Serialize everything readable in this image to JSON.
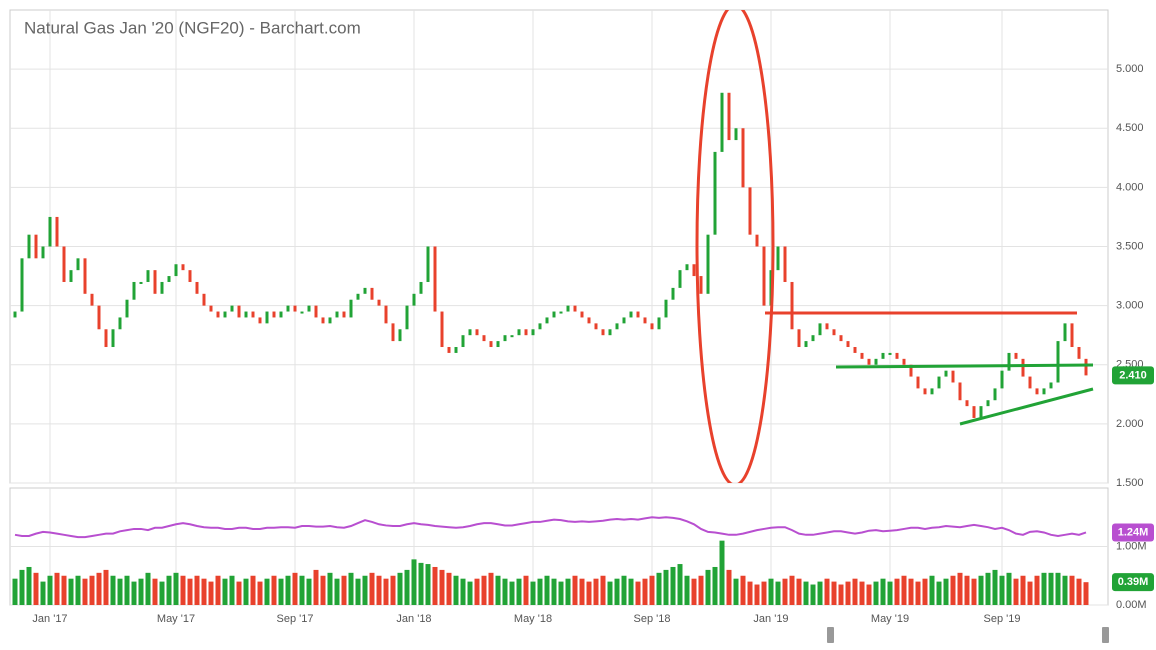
{
  "chart_data": [
    {
      "type": "candlestick",
      "title": "Natural Gas Jan '20 (NGF20) - Barchart.com",
      "up_color": "#21a336",
      "down_color": "#e8412c",
      "open": [
        2.9,
        2.95,
        3.4,
        3.6,
        3.4,
        3.5,
        3.75,
        3.5,
        3.2,
        3.3,
        3.4,
        3.1,
        3.0,
        2.8,
        2.65,
        2.8,
        2.9,
        3.05,
        3.2,
        3.2,
        3.3,
        3.1,
        3.2,
        3.25,
        3.35,
        3.3,
        3.2,
        3.1,
        3.0,
        2.95,
        2.9,
        2.95,
        3.0,
        2.9,
        2.95,
        2.9,
        2.85,
        2.95,
        2.9,
        2.95,
        3.0,
        2.95,
        2.95,
        3.0,
        2.9,
        2.85,
        2.9,
        2.95,
        2.9,
        3.05,
        3.1,
        3.15,
        3.05,
        3.0,
        2.85,
        2.7,
        2.8,
        3.0,
        3.1,
        3.2,
        3.5,
        2.95,
        2.65,
        2.6,
        2.65,
        2.75,
        2.8,
        2.75,
        2.7,
        2.65,
        2.7,
        2.75,
        2.75,
        2.8,
        2.75,
        2.8,
        2.85,
        2.9,
        2.95,
        2.95,
        3.0,
        2.95,
        2.9,
        2.85,
        2.8,
        2.75,
        2.8,
        2.85,
        2.9,
        2.95,
        2.9,
        2.85,
        2.8,
        2.9,
        3.05,
        3.15,
        3.3,
        3.35,
        3.25,
        3.1,
        3.6,
        4.3,
        4.8,
        4.4,
        4.5,
        4.0,
        3.6,
        3.5,
        3.0,
        3.3,
        3.5,
        3.2,
        2.8,
        2.65,
        2.7,
        2.75,
        2.85,
        2.8,
        2.75,
        2.7,
        2.65,
        2.6,
        2.55,
        2.5,
        2.55,
        2.6,
        2.6,
        2.55,
        2.5,
        2.4,
        2.3,
        2.25,
        2.3,
        2.4,
        2.45,
        2.35,
        2.2,
        2.15,
        2.05,
        2.15,
        2.2,
        2.3,
        2.45,
        2.6,
        2.55,
        2.4,
        2.3,
        2.25,
        2.3,
        2.35,
        2.7,
        2.85,
        2.65,
        2.55
      ],
      "close": [
        2.95,
        3.4,
        3.6,
        3.4,
        3.5,
        3.75,
        3.5,
        3.2,
        3.3,
        3.4,
        3.1,
        3.0,
        2.8,
        2.65,
        2.8,
        2.9,
        3.05,
        3.2,
        3.2,
        3.3,
        3.1,
        3.2,
        3.25,
        3.35,
        3.3,
        3.2,
        3.1,
        3.0,
        2.95,
        2.9,
        2.95,
        3.0,
        2.9,
        2.95,
        2.9,
        2.85,
        2.95,
        2.9,
        2.95,
        3.0,
        2.95,
        2.95,
        3.0,
        2.9,
        2.85,
        2.9,
        2.95,
        2.9,
        3.05,
        3.1,
        3.15,
        3.05,
        3.0,
        2.85,
        2.7,
        2.8,
        3.0,
        3.1,
        3.2,
        3.5,
        2.95,
        2.65,
        2.6,
        2.65,
        2.75,
        2.8,
        2.75,
        2.7,
        2.65,
        2.7,
        2.75,
        2.75,
        2.8,
        2.75,
        2.8,
        2.85,
        2.9,
        2.95,
        2.95,
        3.0,
        2.95,
        2.9,
        2.85,
        2.8,
        2.75,
        2.8,
        2.85,
        2.9,
        2.95,
        2.9,
        2.85,
        2.8,
        2.9,
        3.05,
        3.15,
        3.3,
        3.35,
        3.25,
        3.1,
        3.6,
        4.3,
        4.8,
        4.4,
        4.5,
        4.0,
        3.6,
        3.5,
        3.0,
        3.3,
        3.5,
        3.2,
        2.8,
        2.65,
        2.7,
        2.75,
        2.85,
        2.8,
        2.75,
        2.7,
        2.65,
        2.6,
        2.55,
        2.5,
        2.55,
        2.6,
        2.6,
        2.55,
        2.5,
        2.4,
        2.3,
        2.25,
        2.3,
        2.4,
        2.45,
        2.35,
        2.2,
        2.15,
        2.05,
        2.15,
        2.2,
        2.3,
        2.45,
        2.6,
        2.55,
        2.4,
        2.3,
        2.25,
        2.3,
        2.35,
        2.7,
        2.85,
        2.65,
        2.55,
        2.41
      ],
      "ylim": [
        1.5,
        5.5
      ],
      "yticks": [
        {
          "value": 1.5,
          "label": "1.500"
        },
        {
          "value": 2,
          "label": "2.000"
        },
        {
          "value": 2.5,
          "label": "2.500"
        },
        {
          "value": 3,
          "label": "3.000"
        },
        {
          "value": 3.5,
          "label": "3.500"
        },
        {
          "value": 4,
          "label": "4.000"
        },
        {
          "value": 4.5,
          "label": "4.500"
        },
        {
          "value": 5,
          "label": "5.000"
        }
      ],
      "last_price": {
        "value": 2.41,
        "label": "2.410"
      },
      "grid": true
    },
    {
      "type": "bar",
      "categories": [
        null,
        null,
        null,
        null,
        null,
        "Jan '17",
        null,
        null,
        null,
        null,
        null,
        null,
        null,
        null,
        null,
        null,
        null,
        null,
        null,
        null,
        null,
        null,
        null,
        "May '17",
        null,
        null,
        null,
        null,
        null,
        null,
        null,
        null,
        null,
        null,
        null,
        null,
        null,
        null,
        null,
        null,
        "Sep '17",
        null,
        null,
        null,
        null,
        null,
        null,
        null,
        null,
        null,
        null,
        null,
        null,
        null,
        null,
        null,
        null,
        "Jan '18",
        null,
        null,
        null,
        null,
        null,
        null,
        null,
        null,
        null,
        null,
        null,
        null,
        null,
        null,
        null,
        null,
        "May '18",
        null,
        null,
        null,
        null,
        null,
        null,
        null,
        null,
        null,
        null,
        null,
        null,
        null,
        null,
        null,
        null,
        "Sep '18",
        null,
        null,
        null,
        null,
        null,
        null,
        null,
        null,
        null,
        null,
        null,
        null,
        null,
        null,
        null,
        null,
        "Jan '19",
        null,
        null,
        null,
        null,
        null,
        null,
        null,
        null,
        null,
        null,
        null,
        null,
        null,
        null,
        null,
        null,
        "May '19",
        null,
        null,
        null,
        null,
        null,
        null,
        null,
        null,
        null,
        null,
        null,
        null,
        null,
        null,
        null,
        "Sep '19",
        null,
        null,
        null,
        null,
        null,
        null,
        null,
        null,
        null,
        null,
        null,
        null
      ],
      "values": [
        0.45,
        0.6,
        0.65,
        0.55,
        0.4,
        0.5,
        0.55,
        0.5,
        0.45,
        0.5,
        0.45,
        0.5,
        0.55,
        0.6,
        0.5,
        0.45,
        0.5,
        0.4,
        0.45,
        0.55,
        0.45,
        0.4,
        0.5,
        0.55,
        0.5,
        0.45,
        0.5,
        0.45,
        0.4,
        0.5,
        0.45,
        0.5,
        0.4,
        0.45,
        0.5,
        0.4,
        0.45,
        0.5,
        0.45,
        0.5,
        0.55,
        0.5,
        0.45,
        0.6,
        0.5,
        0.55,
        0.45,
        0.5,
        0.55,
        0.45,
        0.5,
        0.55,
        0.5,
        0.45,
        0.5,
        0.55,
        0.6,
        0.78,
        0.72,
        0.7,
        0.65,
        0.6,
        0.55,
        0.5,
        0.45,
        0.4,
        0.45,
        0.5,
        0.55,
        0.5,
        0.45,
        0.4,
        0.45,
        0.5,
        0.4,
        0.45,
        0.5,
        0.45,
        0.4,
        0.45,
        0.5,
        0.45,
        0.4,
        0.45,
        0.5,
        0.4,
        0.45,
        0.5,
        0.45,
        0.4,
        0.45,
        0.5,
        0.55,
        0.6,
        0.65,
        0.7,
        0.5,
        0.45,
        0.5,
        0.6,
        0.65,
        1.1,
        0.6,
        0.45,
        0.5,
        0.4,
        0.35,
        0.4,
        0.45,
        0.4,
        0.45,
        0.5,
        0.45,
        0.4,
        0.35,
        0.4,
        0.45,
        0.4,
        0.35,
        0.4,
        0.45,
        0.4,
        0.35,
        0.4,
        0.45,
        0.4,
        0.45,
        0.5,
        0.45,
        0.4,
        0.45,
        0.5,
        0.4,
        0.45,
        0.5,
        0.55,
        0.5,
        0.45,
        0.5,
        0.55,
        0.6,
        0.5,
        0.55,
        0.45,
        0.5,
        0.4,
        0.5,
        0.55,
        0.55,
        0.55,
        0.5,
        0.5,
        0.45,
        0.39
      ],
      "average": [
        1.2,
        1.18,
        1.18,
        1.22,
        1.25,
        1.24,
        1.22,
        1.2,
        1.18,
        1.16,
        1.16,
        1.18,
        1.2,
        1.22,
        1.22,
        1.26,
        1.28,
        1.3,
        1.3,
        1.28,
        1.32,
        1.32,
        1.35,
        1.38,
        1.4,
        1.38,
        1.35,
        1.33,
        1.32,
        1.32,
        1.3,
        1.3,
        1.32,
        1.32,
        1.3,
        1.3,
        1.32,
        1.32,
        1.33,
        1.33,
        1.32,
        1.35,
        1.35,
        1.34,
        1.34,
        1.35,
        1.33,
        1.32,
        1.35,
        1.4,
        1.45,
        1.42,
        1.38,
        1.36,
        1.35,
        1.35,
        1.38,
        1.4,
        1.38,
        1.37,
        1.35,
        1.34,
        1.33,
        1.32,
        1.33,
        1.35,
        1.38,
        1.4,
        1.4,
        1.38,
        1.36,
        1.36,
        1.38,
        1.4,
        1.42,
        1.42,
        1.44,
        1.46,
        1.45,
        1.43,
        1.42,
        1.43,
        1.42,
        1.43,
        1.44,
        1.46,
        1.47,
        1.46,
        1.47,
        1.46,
        1.48,
        1.5,
        1.49,
        1.5,
        1.49,
        1.47,
        1.43,
        1.38,
        1.3,
        1.25,
        1.24,
        1.22,
        1.2,
        1.2,
        1.22,
        1.25,
        1.28,
        1.3,
        1.32,
        1.33,
        1.33,
        1.28,
        1.22,
        1.2,
        1.2,
        1.22,
        1.24,
        1.26,
        1.26,
        1.24,
        1.22,
        1.24,
        1.27,
        1.28,
        1.26,
        1.27,
        1.28,
        1.3,
        1.32,
        1.32,
        1.3,
        1.32,
        1.33,
        1.35,
        1.34,
        1.33,
        1.35,
        1.37,
        1.35,
        1.33,
        1.3,
        1.32,
        1.28,
        1.22,
        1.2,
        1.25,
        1.26,
        1.24,
        1.2,
        1.18,
        1.2,
        1.22,
        1.2,
        1.24
      ],
      "average_color": "#b84fd0",
      "ylim": [
        0,
        2
      ],
      "yticks": [
        {
          "value": 0,
          "label": "0.00M"
        },
        {
          "value": 1,
          "label": "1.00M"
        }
      ],
      "average_label": {
        "value": 1.24,
        "label": "1.24M"
      },
      "last_label": {
        "value": 0.39,
        "label": "0.39M"
      }
    }
  ]
}
